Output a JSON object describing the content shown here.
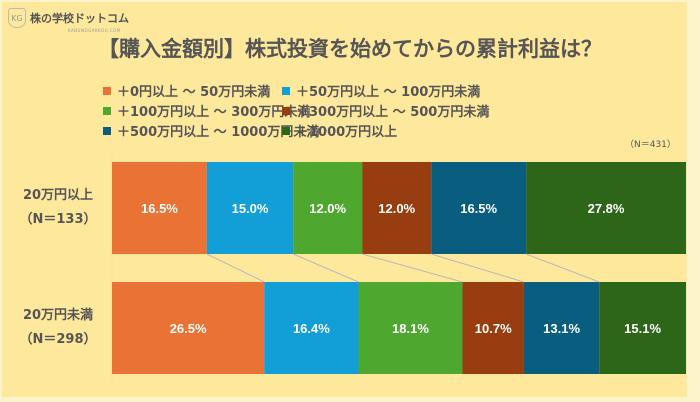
{
  "logo": {
    "name": "株の学校ドットコム",
    "sub": "KABUNOGAKKOU.COM",
    "mark": "KG"
  },
  "chart_data": {
    "type": "bar",
    "orientation": "horizontal",
    "stacked": true,
    "percent": true,
    "title": "【購入金額別】株式投資を始めてからの累計利益は？",
    "note": "（N＝431）",
    "legend_placement": "top",
    "series_names": [
      "＋0円以上 ～ 50万円未満",
      "＋50万円以上 ～ 100万円未満",
      "＋100万円以上 ～ 300万円未満",
      "＋300万円以上 ～ 500万円未満",
      "＋500万円以上 ～ 1000万円未満",
      "＋1000万円以上"
    ],
    "colors": [
      "#e97234",
      "#129fd7",
      "#4ea72e",
      "#983d10",
      "#095e80",
      "#2d6519"
    ],
    "categories": [
      {
        "label": "20万円以上",
        "n": "（N＝133）",
        "values": [
          16.5,
          15.0,
          12.0,
          12.0,
          16.5,
          27.8
        ],
        "labels": [
          "16.5%",
          "15.0%",
          "12.0%",
          "12.0%",
          "16.5%",
          "27.8%"
        ]
      },
      {
        "label": "20万円未満",
        "n": "（N＝298）",
        "values": [
          26.5,
          16.4,
          18.1,
          10.7,
          13.1,
          15.1
        ],
        "labels": [
          "26.5%",
          "16.4%",
          "18.1%",
          "10.7%",
          "13.1%",
          "15.1%"
        ]
      }
    ],
    "series_lines": true,
    "grid": false
  }
}
